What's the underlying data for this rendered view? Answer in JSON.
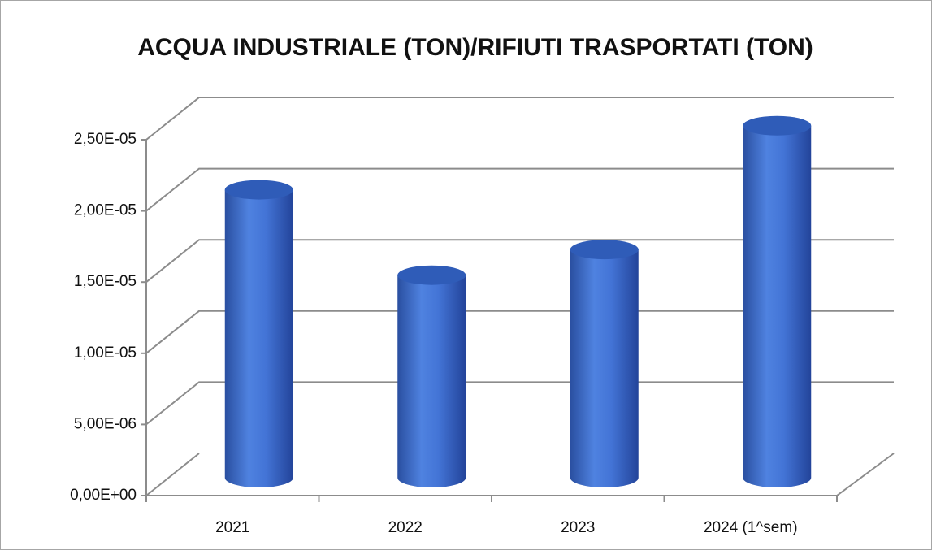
{
  "chart_data": {
    "type": "bar3d",
    "title": "ACQUA INDUSTRIALE (TON)/RIFIUTI TRASPORTATI (TON)",
    "categories": [
      "2021",
      "2022",
      "2023",
      "2024 (1^sem)"
    ],
    "values": [
      2e-05,
      1.4e-05,
      1.58e-05,
      2.45e-05
    ],
    "color": "#3f6fd0",
    "ylim": [
      0,
      2.5e-05
    ],
    "yticks": [
      {
        "value": 0,
        "label": "0,00E+00"
      },
      {
        "value": 5e-06,
        "label": "5,00E-06"
      },
      {
        "value": 1e-05,
        "label": "1,00E-05"
      },
      {
        "value": 1.5e-05,
        "label": "1,50E-05"
      },
      {
        "value": 2e-05,
        "label": "2,00E-05"
      },
      {
        "value": 2.5e-05,
        "label": "2,50E-05"
      }
    ],
    "grid": true
  }
}
